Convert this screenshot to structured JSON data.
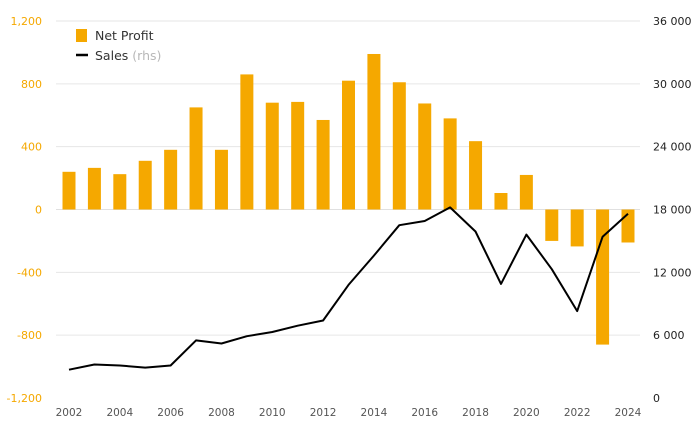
{
  "chart_data": {
    "type": "bar+line",
    "x": [
      2002,
      2003,
      2004,
      2005,
      2006,
      2007,
      2008,
      2009,
      2010,
      2011,
      2012,
      2013,
      2014,
      2015,
      2016,
      2017,
      2018,
      2019,
      2020,
      2021,
      2022,
      2023,
      2024
    ],
    "series": [
      {
        "name": "Net Profit",
        "type": "bar",
        "axis": "left",
        "color": "#f5a800",
        "values": [
          240,
          265,
          225,
          310,
          380,
          650,
          380,
          860,
          680,
          685,
          570,
          820,
          990,
          810,
          675,
          580,
          435,
          105,
          220,
          -200,
          -235,
          -860,
          -210
        ]
      },
      {
        "name": "Sales",
        "name_suffix": "(rhs)",
        "type": "line",
        "axis": "right",
        "color": "#000000",
        "values": [
          2700,
          3200,
          3100,
          2900,
          3100,
          5500,
          5200,
          5900,
          6300,
          6900,
          7400,
          10800,
          13600,
          16500,
          16900,
          18200,
          15900,
          10900,
          15600,
          12300,
          8300,
          15400,
          17600
        ]
      }
    ],
    "y_left": {
      "range": [
        -1200,
        1200
      ],
      "ticks": [
        "1,200",
        "800",
        "400",
        "0",
        "-400",
        "-800",
        "-1,200"
      ],
      "tick_values": [
        1200,
        800,
        400,
        0,
        -400,
        -800,
        -1200
      ]
    },
    "y_right": {
      "range": [
        0,
        36000
      ],
      "ticks": [
        "36 000",
        "30 000",
        "24 000",
        "18 000",
        "12 000",
        "6 000",
        "0"
      ],
      "tick_values": [
        36000,
        30000,
        24000,
        18000,
        12000,
        6000,
        0
      ]
    },
    "x_ticks": [
      "2002",
      "2004",
      "2006",
      "2008",
      "2010",
      "2012",
      "2014",
      "2016",
      "2018",
      "2020",
      "2022",
      "2024"
    ],
    "grid": true,
    "legend": {
      "placement": "top-left",
      "items": [
        {
          "label": "Net Profit",
          "marker": "square",
          "color": "#f5a800"
        },
        {
          "label": "Sales",
          "sub": "(rhs)",
          "marker": "line",
          "color": "#000000"
        }
      ]
    }
  }
}
